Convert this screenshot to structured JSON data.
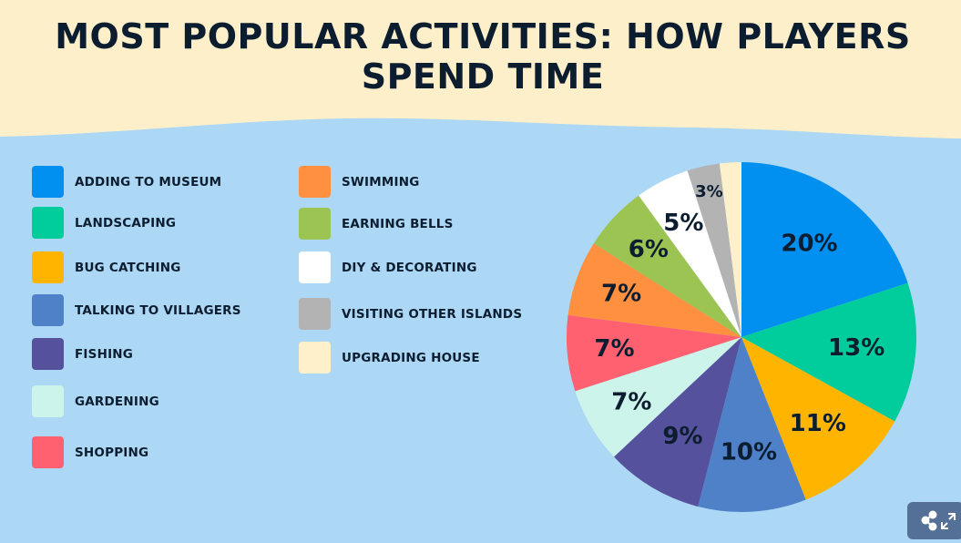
{
  "header": {
    "title_line1": "MOST POPULAR ACTIVITIES: HOW PLAYERS",
    "title_line2": "SPEND TIME"
  },
  "colors": {
    "header_bg": "#fdefc9",
    "body_bg": "#acd8f5",
    "text": "#0c1d30"
  },
  "chart_data": {
    "type": "pie",
    "title": "MOST POPULAR ACTIVITIES: HOW PLAYERS SPEND TIME",
    "legend_position": "left",
    "slices": [
      {
        "label": "ADDING TO MUSEUM",
        "value": 20,
        "display": "20%",
        "color": "#0290f0"
      },
      {
        "label": "LANDSCAPING",
        "value": 13,
        "display": "13%",
        "color": "#00cd9b"
      },
      {
        "label": "BUG CATCHING",
        "value": 11,
        "display": "11%",
        "color": "#ffb500"
      },
      {
        "label": "TALKING TO VILLAGERS",
        "value": 10,
        "display": "10%",
        "color": "#4f81c8"
      },
      {
        "label": "FISHING",
        "value": 9,
        "display": "9%",
        "color": "#55519c"
      },
      {
        "label": "GARDENING",
        "value": 7,
        "display": "7%",
        "color": "#cdf4ea"
      },
      {
        "label": "SHOPPING",
        "value": 7,
        "display": "7%",
        "color": "#ff6170"
      },
      {
        "label": "SWIMMING",
        "value": 7,
        "display": "7%",
        "color": "#ff9040"
      },
      {
        "label": "EARNING BELLS",
        "value": 6,
        "display": "6%",
        "color": "#9bc453"
      },
      {
        "label": "DIY & DECORATING",
        "value": 5,
        "display": "5%",
        "color": "#ffffff"
      },
      {
        "label": "VISITING OTHER ISLANDS",
        "value": 3,
        "display": "3%",
        "color": "#b3b3b3"
      },
      {
        "label": "UPGRADING HOUSE",
        "value": 2,
        "display": "",
        "color": "#fff0cc"
      }
    ]
  },
  "toolbar": {
    "share_icon": "share-icon",
    "expand_icon": "expand-icon"
  }
}
